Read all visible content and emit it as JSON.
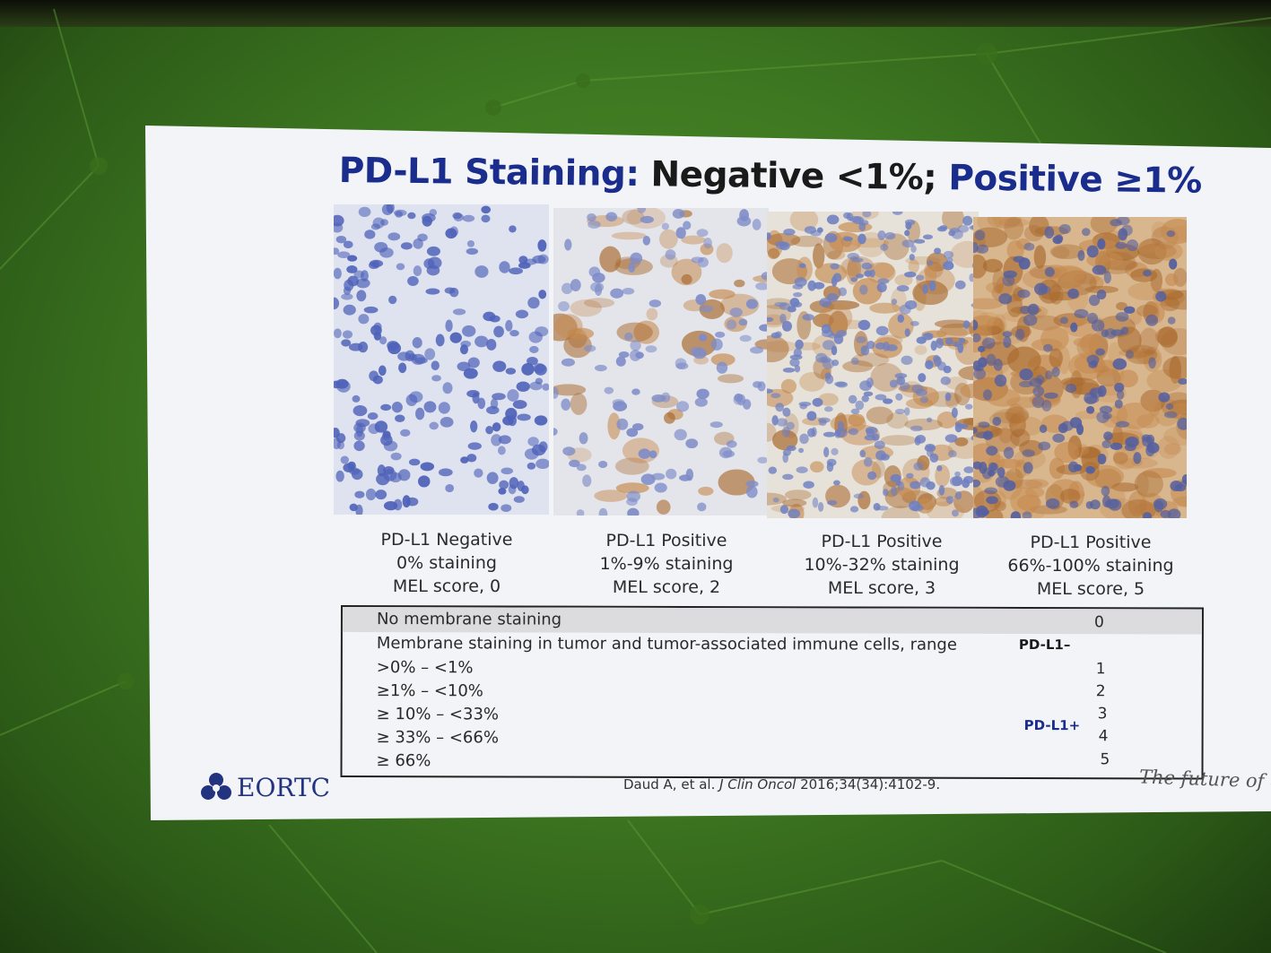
{
  "slide": {
    "title_part1": "PD-L1 Staining:",
    "title_part2": " Negative <1%;",
    "title_part3": " Positive ≥1%",
    "colors": {
      "title_blue": "#1a2c8c",
      "projection_background": "#4a8428",
      "nuclei_blue": "#5868b8",
      "stain_brown": "#c08040"
    },
    "panels": [
      {
        "line1": "PD-L1 Negative",
        "line2": "0% staining",
        "line3": "MEL score, 0",
        "stain_level": 0
      },
      {
        "line1": "PD-L1 Positive",
        "line2": "1%-9% staining",
        "line3": "MEL score, 2",
        "stain_level": 0.2
      },
      {
        "line1": "PD-L1 Positive",
        "line2": "10%-32% staining",
        "line3": "MEL score, 3",
        "stain_level": 0.5
      },
      {
        "line1": "PD-L1 Positive",
        "line2": "66%-100% staining",
        "line3": "MEL score, 5",
        "stain_level": 0.9
      }
    ],
    "score_table": {
      "rows": [
        {
          "label": "No membrane staining",
          "score": "0"
        },
        {
          "label": "Membrane staining in tumor and tumor-associated immune cells, range",
          "score": ""
        },
        {
          "label": ">0% – <1%",
          "score": "1"
        },
        {
          "label": "≥1% – <10%",
          "score": "2"
        },
        {
          "label": "≥ 10% – <33%",
          "score": "3"
        },
        {
          "label": "≥ 33% – <66%",
          "score": "4"
        },
        {
          "label": "≥ 66%",
          "score": "5"
        }
      ],
      "negative_tag": "PD-L1–",
      "positive_tag": "PD-L1+"
    },
    "logo_text": "EORTC",
    "citation_authors": "Daud A, et al. ",
    "citation_journal": "J Clin Oncol",
    "citation_details": " 2016;34(34):4102-9.",
    "tagline": "The future of cance"
  }
}
